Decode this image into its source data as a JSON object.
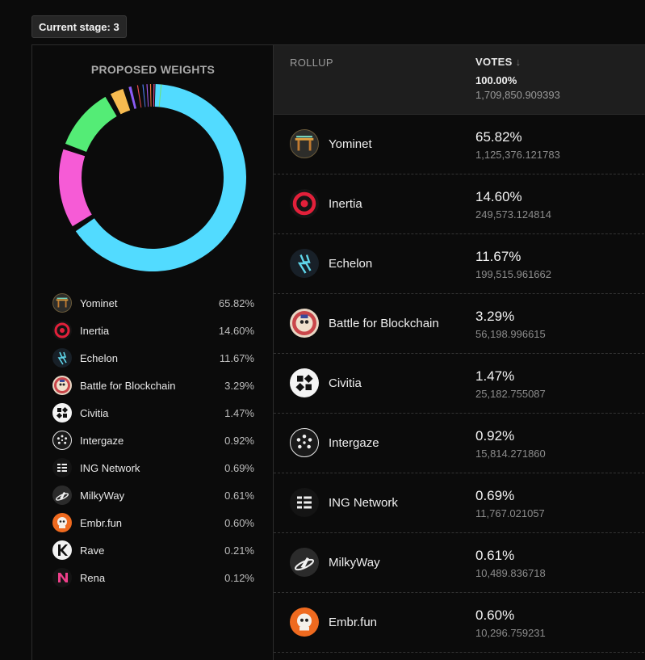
{
  "stage": {
    "label": "Current stage: 3"
  },
  "weights_panel": {
    "title": "PROPOSED WEIGHTS"
  },
  "table": {
    "rollup_header": "ROLLUP",
    "votes_header": "VOTES",
    "sort_arrow": "↓",
    "total_pct": "100.00%",
    "total_votes": "1,709,850.909393"
  },
  "rollups": [
    {
      "name": "Yominet",
      "pct": "65.82%",
      "votes": "1,125,376.121783",
      "color": "#52dbff",
      "icon": "yominet-icon"
    },
    {
      "name": "Inertia",
      "pct": "14.60%",
      "votes": "249,573.124814",
      "color": "#f65bd6",
      "icon": "inertia-icon"
    },
    {
      "name": "Echelon",
      "pct": "11.67%",
      "votes": "199,515.961662",
      "color": "#54ec76",
      "icon": "echelon-icon"
    },
    {
      "name": "Battle for Blockchain",
      "pct": "3.29%",
      "votes": "56,198.996615",
      "color": "#f7bb50",
      "icon": "battle-icon"
    },
    {
      "name": "Civitia",
      "pct": "1.47%",
      "votes": "25,182.755087",
      "color": "#8a5cf6",
      "icon": "civitia-icon"
    },
    {
      "name": "Intergaze",
      "pct": "0.92%",
      "votes": "15,814.271860",
      "color": "#ef4e4e",
      "icon": "intergaze-icon"
    },
    {
      "name": "ING Network",
      "pct": "0.69%",
      "votes": "11,767.021057",
      "color": "#4f7df5",
      "icon": "ing-network-icon"
    },
    {
      "name": "MilkyWay",
      "pct": "0.61%",
      "votes": "10,489.836718",
      "color": "#a85cf0",
      "icon": "milkyway-icon"
    },
    {
      "name": "Embr.fun",
      "pct": "0.60%",
      "votes": "10,296.759231",
      "color": "#f57a3a",
      "icon": "embr-icon"
    },
    {
      "name": "Rave",
      "pct": "0.21%",
      "color": "#e64d9a",
      "icon": "rave-icon"
    },
    {
      "name": "Rena",
      "pct": "0.12%",
      "color": "#6ee07a",
      "icon": "rena-icon"
    }
  ],
  "chart_data": {
    "type": "pie",
    "title": "PROPOSED WEIGHTS",
    "categories": [
      "Yominet",
      "Inertia",
      "Echelon",
      "Battle for Blockchain",
      "Civitia",
      "Intergaze",
      "ING Network",
      "MilkyWay",
      "Embr.fun",
      "Rave",
      "Rena"
    ],
    "values": [
      65.82,
      14.6,
      11.67,
      3.29,
      1.47,
      0.92,
      0.69,
      0.61,
      0.6,
      0.21,
      0.12
    ]
  }
}
